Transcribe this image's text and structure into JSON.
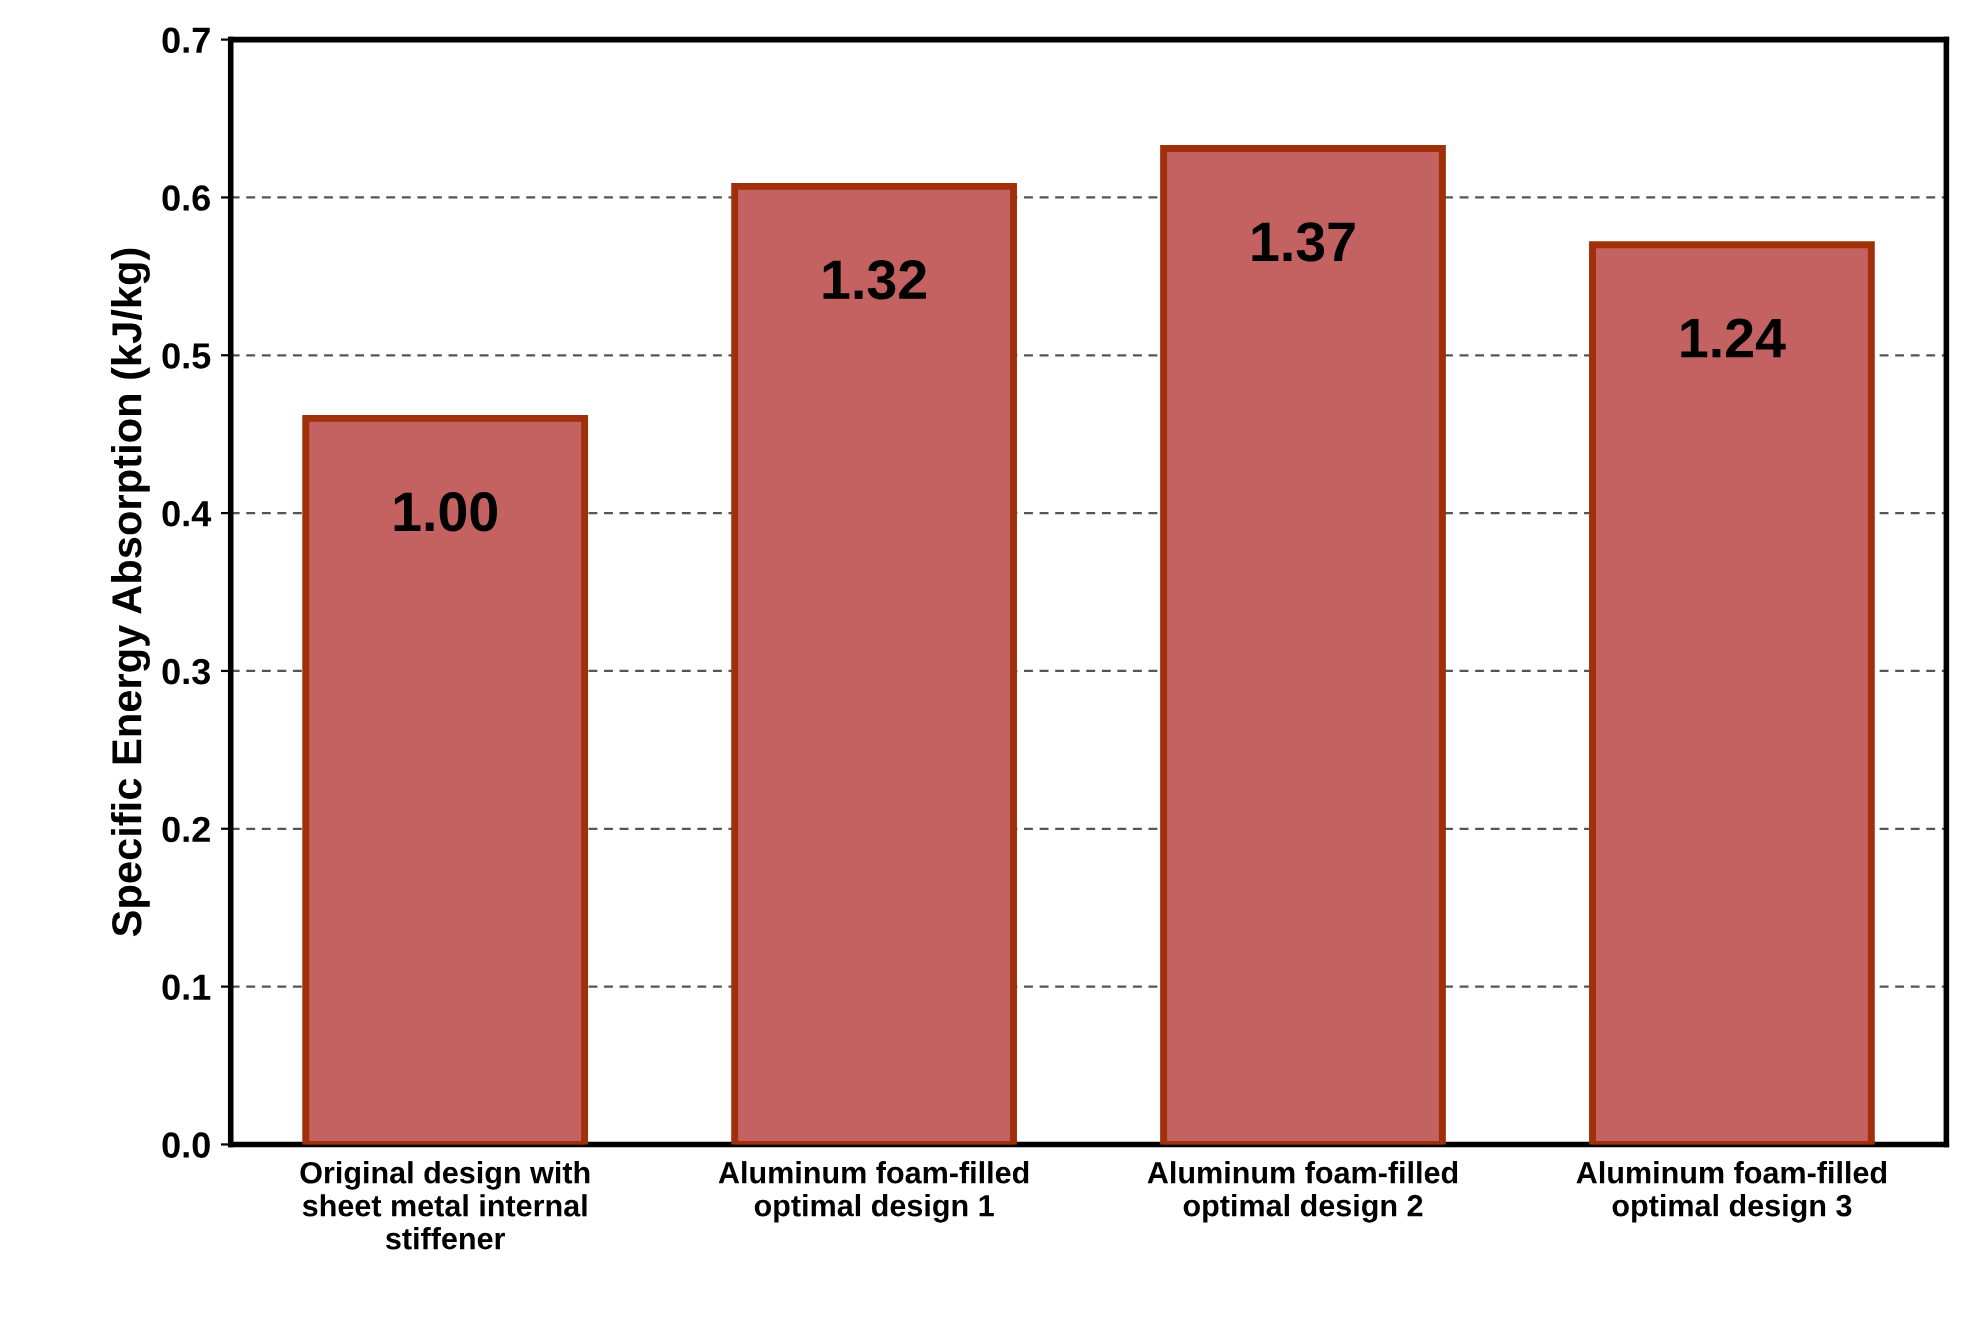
{
  "chart_data": {
    "type": "bar",
    "ylabel": "Specific Energy Absorption (kJ/kg)",
    "categories": [
      "Original design with\nsheet metal internal\nstiffener",
      "Aluminum foam-filled\noptimal design 1",
      "Aluminum foam-filled\noptimal design 2",
      "Aluminum foam-filled\noptimal design 3"
    ],
    "values": [
      0.46,
      0.607,
      0.631,
      0.57
    ],
    "annotations": [
      "1.00",
      "1.32",
      "1.37",
      "1.24"
    ],
    "color": "#c46262",
    "ylim": [
      0,
      0.7
    ],
    "yticks": [
      {
        "value": 0,
        "label": "0.0"
      },
      0.1,
      0.2,
      0.3,
      0.4,
      0.5,
      0.6,
      0.7
    ],
    "grid": "y"
  }
}
